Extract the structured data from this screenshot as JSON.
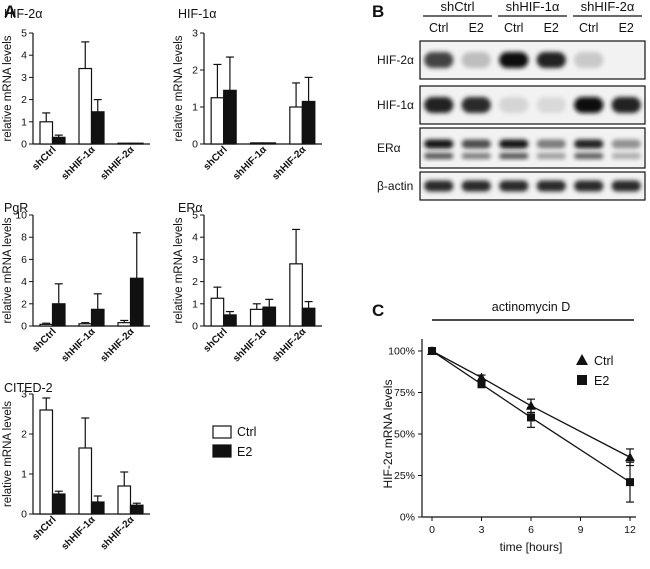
{
  "panels": {
    "A": "A",
    "B": "B",
    "C": "C"
  },
  "colors": {
    "ctrl_fill": "#ffffff",
    "e2_fill": "#111111",
    "axis": "#111111"
  },
  "legend_A": {
    "items": [
      {
        "label": "Ctrl",
        "fill": "#ffffff"
      },
      {
        "label": "E2",
        "fill": "#111111"
      }
    ]
  },
  "chart_data": [
    {
      "id": "hif2a",
      "type": "bar",
      "title": "HIF-2α",
      "ylabel": "relative mRNA levels",
      "ylim": [
        0,
        5
      ],
      "yticks": [
        0,
        1,
        2,
        3,
        4,
        5
      ],
      "categories": [
        "shCtrl",
        "shHIF-1α",
        "shHIF-2α"
      ],
      "series": [
        {
          "name": "Ctrl",
          "values": [
            1.0,
            3.4,
            0.02
          ],
          "errors": [
            0.4,
            1.2,
            0.0
          ]
        },
        {
          "name": "E2",
          "values": [
            0.3,
            1.45,
            0.01
          ],
          "errors": [
            0.1,
            0.55,
            0.0
          ]
        }
      ]
    },
    {
      "id": "hif1a",
      "type": "bar",
      "title": "HIF-1α",
      "ylabel": "relative mRNA levels",
      "ylim": [
        0,
        3
      ],
      "yticks": [
        0,
        1,
        2,
        3
      ],
      "categories": [
        "shCtrl",
        "shHIF-1α",
        "shHIF-2α"
      ],
      "series": [
        {
          "name": "Ctrl",
          "values": [
            1.25,
            0.03,
            1.0
          ],
          "errors": [
            0.9,
            0.0,
            0.65
          ]
        },
        {
          "name": "E2",
          "values": [
            1.45,
            0.03,
            1.15
          ],
          "errors": [
            0.9,
            0.0,
            0.65
          ]
        }
      ]
    },
    {
      "id": "pgr",
      "type": "bar",
      "title": "PgR",
      "ylabel": "relative mRNA levels",
      "ylim": [
        0,
        10
      ],
      "yticks": [
        0,
        2,
        4,
        6,
        8,
        10
      ],
      "categories": [
        "shCtrl",
        "shHIF-1α",
        "shHIF-2α"
      ],
      "series": [
        {
          "name": "Ctrl",
          "values": [
            0.15,
            0.2,
            0.3
          ],
          "errors": [
            0.1,
            0.1,
            0.2
          ]
        },
        {
          "name": "E2",
          "values": [
            2.0,
            1.5,
            4.3
          ],
          "errors": [
            1.8,
            1.4,
            4.1
          ]
        }
      ]
    },
    {
      "id": "era",
      "type": "bar",
      "title": "ERα",
      "ylabel": "relative mRNA levels",
      "ylim": [
        0,
        5
      ],
      "yticks": [
        0,
        1,
        2,
        3,
        4,
        5
      ],
      "categories": [
        "shCtrl",
        "shHIF-1α",
        "shHIF-2α"
      ],
      "series": [
        {
          "name": "Ctrl",
          "values": [
            1.25,
            0.75,
            2.8
          ],
          "errors": [
            0.5,
            0.25,
            1.55
          ]
        },
        {
          "name": "E2",
          "values": [
            0.5,
            0.85,
            0.8
          ],
          "errors": [
            0.15,
            0.35,
            0.3
          ]
        }
      ]
    },
    {
      "id": "cited2",
      "type": "bar",
      "title": "CITED-2",
      "ylabel": "relative mRNA levels",
      "ylim": [
        0,
        3
      ],
      "yticks": [
        0,
        1,
        2,
        3
      ],
      "categories": [
        "shCtrl",
        "shHIF-1α",
        "shHIF-2α"
      ],
      "series": [
        {
          "name": "Ctrl",
          "values": [
            2.6,
            1.65,
            0.7
          ],
          "errors": [
            0.3,
            0.75,
            0.35
          ]
        },
        {
          "name": "E2",
          "values": [
            0.5,
            0.3,
            0.22
          ],
          "errors": [
            0.07,
            0.15,
            0.05
          ]
        }
      ]
    },
    {
      "id": "decay",
      "type": "line",
      "title": "",
      "annotation": "actinomycin D",
      "xlabel": "time [hours]",
      "ylabel": "HIF-2α mRNA levels",
      "xlim": [
        0,
        12
      ],
      "ylim": [
        0,
        100
      ],
      "xticks": [
        0,
        3,
        6,
        9,
        12
      ],
      "yticks": [
        0,
        25,
        50,
        75,
        100
      ],
      "ytick_labels": [
        "0%",
        "25%",
        "50%",
        "75%",
        "100%"
      ],
      "x": [
        0,
        3,
        6,
        12
      ],
      "series": [
        {
          "name": "Ctrl",
          "marker": "triangle",
          "values": [
            100,
            84,
            67,
            36
          ],
          "errors": [
            0,
            1.5,
            4,
            5
          ]
        },
        {
          "name": "E2",
          "marker": "square",
          "values": [
            100,
            80,
            60,
            21
          ],
          "errors": [
            0,
            2,
            6,
            12
          ]
        }
      ],
      "legend": "top-right"
    }
  ],
  "blot": {
    "groups": [
      "shCtrl",
      "shHIF-1α",
      "shHIF-2α"
    ],
    "lanes": [
      "Ctrl",
      "E2",
      "Ctrl",
      "E2",
      "Ctrl",
      "E2"
    ],
    "rows": [
      {
        "label": "HIF-2α",
        "intensity": [
          0.75,
          0.2,
          1.0,
          0.9,
          0.15,
          0.0
        ]
      },
      {
        "label": "HIF-1α",
        "intensity": [
          0.9,
          0.85,
          0.1,
          0.08,
          1.0,
          0.9
        ]
      },
      {
        "label": "ERα",
        "intensity": [
          0.95,
          0.7,
          0.95,
          0.5,
          0.9,
          0.4
        ]
      },
      {
        "label": "β-actin",
        "intensity": [
          0.85,
          0.85,
          0.85,
          0.85,
          0.85,
          0.85
        ]
      }
    ]
  }
}
